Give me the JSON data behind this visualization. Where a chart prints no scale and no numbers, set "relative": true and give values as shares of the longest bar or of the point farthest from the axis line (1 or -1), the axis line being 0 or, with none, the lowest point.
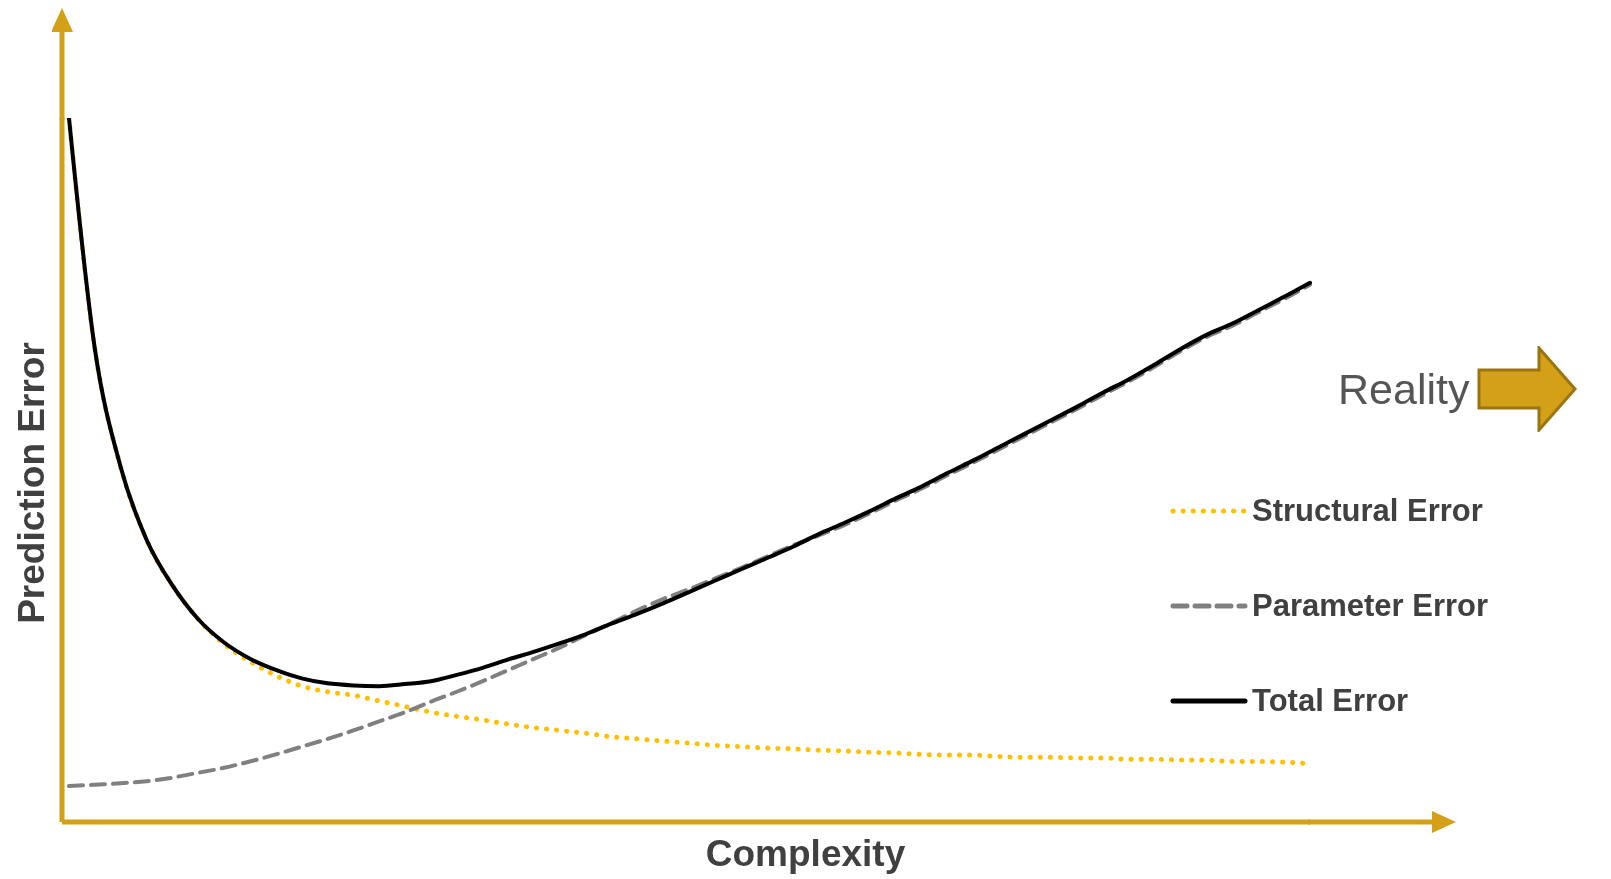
{
  "chart_data": {
    "type": "line",
    "relative": true,
    "xlabel": "Complexity",
    "ylabel": "Prediction Error",
    "legend": "right",
    "annotations": [
      "Reality"
    ],
    "categories": [
      null,
      null,
      null,
      null,
      null,
      null,
      null,
      null,
      null,
      null,
      null,
      null,
      null,
      null,
      null,
      null,
      null,
      null,
      null,
      null,
      null,
      null,
      null,
      null,
      null,
      null,
      null,
      null,
      null,
      null,
      null,
      null,
      null,
      null,
      null,
      null,
      null,
      null,
      null,
      null,
      null,
      null,
      null,
      null,
      null,
      null,
      null,
      null,
      null
    ],
    "series": [
      {
        "name": "Structural Error",
        "color": "#ffc000",
        "line_style": "dotted",
        "values": [
          1.0,
          0.672,
          0.504,
          0.401,
          0.336,
          0.288,
          0.253,
          0.228,
          0.208,
          0.193,
          0.185,
          0.18,
          0.172,
          0.164,
          0.156,
          0.15,
          0.145,
          0.139,
          0.134,
          0.13,
          0.126,
          0.121,
          0.118,
          0.115,
          0.112,
          0.109,
          0.107,
          0.105,
          0.104,
          0.102,
          0.101,
          0.099,
          0.098,
          0.096,
          0.095,
          0.095,
          0.093,
          0.092,
          0.092,
          0.091,
          0.091,
          0.089,
          0.089,
          0.088,
          0.088,
          0.086,
          0.086,
          0.085,
          0.083
        ]
      },
      {
        "name": "Parameter Error",
        "color": "#808080",
        "line_style": "dashed",
        "values": [
          0.051,
          0.053,
          0.055,
          0.058,
          0.063,
          0.07,
          0.077,
          0.086,
          0.096,
          0.107,
          0.118,
          0.13,
          0.143,
          0.156,
          0.171,
          0.185,
          0.2,
          0.216,
          0.232,
          0.248,
          0.266,
          0.283,
          0.301,
          0.317,
          0.331,
          0.346,
          0.361,
          0.377,
          0.393,
          0.407,
          0.422,
          0.439,
          0.457,
          0.474,
          0.493,
          0.511,
          0.53,
          0.549,
          0.568,
          0.587,
          0.607,
          0.626,
          0.647,
          0.669,
          0.689,
          0.705,
          0.724,
          0.743,
          0.763
        ]
      },
      {
        "name": "Total Error",
        "color": "#000000",
        "line_style": "solid",
        "values": [
          1.0,
          0.672,
          0.504,
          0.401,
          0.336,
          0.288,
          0.255,
          0.232,
          0.216,
          0.204,
          0.197,
          0.194,
          0.193,
          0.196,
          0.2,
          0.209,
          0.219,
          0.231,
          0.242,
          0.254,
          0.267,
          0.282,
          0.296,
          0.311,
          0.327,
          0.343,
          0.359,
          0.375,
          0.391,
          0.409,
          0.425,
          0.442,
          0.46,
          0.477,
          0.496,
          0.514,
          0.533,
          0.552,
          0.571,
          0.59,
          0.61,
          0.629,
          0.65,
          0.672,
          0.692,
          0.708,
          0.727,
          0.746,
          0.766
        ]
      }
    ]
  }
}
